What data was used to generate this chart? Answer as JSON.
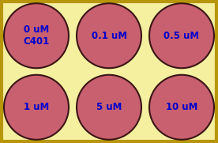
{
  "fig_width": 2.76,
  "fig_height": 1.81,
  "dpi": 100,
  "background_color": "#f5f0a0",
  "border_color": "#b8960a",
  "circle_fill_color": "#c86070",
  "circle_edge_color": "#3a1515",
  "text_color": "#0000cc",
  "font_size": 8.5,
  "font_weight": "bold",
  "wells": [
    {
      "row": 0,
      "col": 0,
      "label": "0 uM\nC401"
    },
    {
      "row": 0,
      "col": 1,
      "label": "0.1 uM"
    },
    {
      "row": 0,
      "col": 2,
      "label": "0.5 uM"
    },
    {
      "row": 1,
      "col": 0,
      "label": "1 uM"
    },
    {
      "row": 1,
      "col": 1,
      "label": "5 uM"
    },
    {
      "row": 1,
      "col": 2,
      "label": "10 uM"
    }
  ],
  "n_cols": 3,
  "n_rows": 2,
  "border_linewidth": 3,
  "circle_edge_width": 1.5
}
